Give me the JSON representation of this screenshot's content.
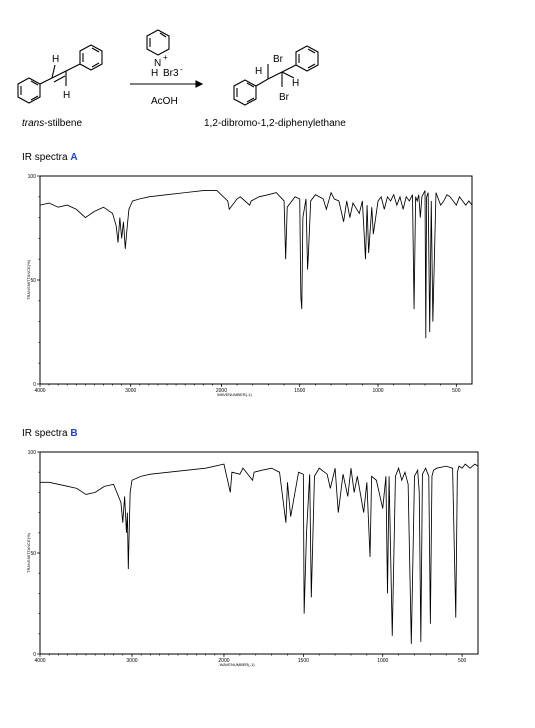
{
  "reaction": {
    "reactant_label_italic": "trans",
    "reactant_label_rest": "-stilbene",
    "product_label": "1,2-dibromo-1,2-diphenylethane",
    "reagent_top": "Br3",
    "reagent_charge_minus": "-",
    "reagent_charge_plus": "+",
    "reagent_h": "H",
    "solvent": "AcOH",
    "atom_H": "H",
    "atom_Br": "Br"
  },
  "spectrum_a": {
    "heading": "IR spectra",
    "tag": "A",
    "xlabel": "WAVENUMBER(-1)",
    "ylabel": "TRANSMITTANCE(%)"
  },
  "spectrum_b": {
    "heading": "IR spectra",
    "tag": "B",
    "xlabel": "WAVENUMBER(-1)",
    "ylabel": "TRANSMITTANCE(%)"
  },
  "chart_data": [
    {
      "type": "line",
      "title": "IR spectra A",
      "xlabel": "WAVENUMBER(-1)",
      "ylabel": "TRANSMITTANCE(%)",
      "x_reversed": true,
      "xlim": [
        4000,
        400
      ],
      "ylim": [
        0,
        100
      ],
      "x_ticks": [
        "4000",
        "3000",
        "2000",
        "1500",
        "1000",
        "500"
      ],
      "y_ticks": [
        "0",
        "50",
        "100"
      ],
      "series": [
        {
          "x": [
            4000,
            3900,
            3800,
            3700,
            3600,
            3500,
            3400,
            3300,
            3200,
            3160,
            3140,
            3120,
            3100,
            3080,
            3060,
            3040,
            3020,
            3000,
            2980,
            2900,
            2800,
            2600,
            2400,
            2200,
            2050,
            1960,
            1950,
            1900,
            1880,
            1820,
            1810,
            1760,
            1700,
            1650,
            1600,
            1590,
            1580,
            1530,
            1500,
            1493,
            1487,
            1480,
            1460,
            1450,
            1445,
            1430,
            1400,
            1350,
            1330,
            1300,
            1280,
            1250,
            1220,
            1200,
            1180,
            1160,
            1120,
            1100,
            1080,
            1070,
            1060,
            1040,
            1030,
            1000,
            980,
            960,
            940,
            920,
            900,
            880,
            860,
            840,
            820,
            800,
            780,
            770,
            760,
            750,
            740,
            730,
            720,
            700,
            695,
            690,
            680,
            670,
            660,
            650,
            630,
            600,
            580,
            560,
            540,
            520,
            500,
            480,
            460,
            440,
            420,
            400
          ],
          "y": [
            86,
            87,
            85,
            86,
            84,
            80,
            83,
            85,
            82,
            76,
            68,
            80,
            70,
            78,
            65,
            75,
            84,
            86,
            88,
            89,
            90,
            91,
            92,
            93,
            93,
            88,
            84,
            89,
            90,
            86,
            88,
            90,
            91,
            92,
            88,
            60,
            85,
            90,
            89,
            42,
            36,
            80,
            89,
            55,
            62,
            88,
            91,
            89,
            84,
            92,
            89,
            88,
            78,
            88,
            80,
            87,
            82,
            88,
            60,
            86,
            63,
            85,
            72,
            88,
            90,
            84,
            90,
            88,
            91,
            86,
            90,
            84,
            90,
            88,
            91,
            36,
            90,
            88,
            91,
            80,
            90,
            93,
            22,
            90,
            92,
            25,
            88,
            30,
            92,
            86,
            88,
            91,
            90,
            88,
            86,
            90,
            88,
            86,
            88,
            86
          ]
        }
      ]
    },
    {
      "type": "line",
      "title": "IR spectra B",
      "xlabel": "WAVENUMBER(-1)",
      "ylabel": "TRANSMITTANCE(%)",
      "x_reversed": true,
      "xlim": [
        4000,
        400
      ],
      "ylim": [
        0,
        100
      ],
      "x_ticks": [
        "4000",
        "3000",
        "2000",
        "1500",
        "1000",
        "500"
      ],
      "y_ticks": [
        "0",
        "50",
        "100"
      ],
      "series": [
        {
          "x": [
            4000,
            3900,
            3800,
            3700,
            3600,
            3500,
            3400,
            3300,
            3200,
            3120,
            3100,
            3080,
            3060,
            3050,
            3040,
            3020,
            3000,
            2900,
            2800,
            2600,
            2400,
            2200,
            2000,
            1960,
            1950,
            1900,
            1880,
            1820,
            1810,
            1760,
            1700,
            1650,
            1610,
            1600,
            1580,
            1530,
            1500,
            1495,
            1480,
            1460,
            1450,
            1430,
            1400,
            1350,
            1330,
            1300,
            1280,
            1250,
            1220,
            1200,
            1180,
            1160,
            1120,
            1100,
            1080,
            1070,
            1040,
            1000,
            980,
            970,
            960,
            940,
            920,
            900,
            880,
            860,
            840,
            820,
            800,
            780,
            770,
            760,
            750,
            730,
            710,
            700,
            690,
            680,
            660,
            600,
            560,
            540,
            530,
            520,
            500,
            480,
            450,
            420,
            400
          ],
          "y": [
            85,
            85,
            84,
            83,
            82,
            79,
            80,
            83,
            84,
            75,
            65,
            78,
            60,
            70,
            42,
            80,
            86,
            88,
            89,
            90,
            91,
            92,
            94,
            80,
            90,
            89,
            92,
            86,
            90,
            91,
            92,
            90,
            65,
            85,
            68,
            90,
            89,
            20,
            60,
            89,
            28,
            88,
            92,
            89,
            82,
            92,
            70,
            89,
            78,
            92,
            80,
            88,
            70,
            85,
            48,
            88,
            86,
            72,
            88,
            30,
            88,
            9,
            88,
            92,
            86,
            90,
            84,
            5,
            88,
            91,
            80,
            6,
            89,
            92,
            88,
            15,
            88,
            91,
            92,
            93,
            92,
            18,
            90,
            93,
            92,
            94,
            92,
            94,
            93
          ]
        }
      ]
    }
  ]
}
